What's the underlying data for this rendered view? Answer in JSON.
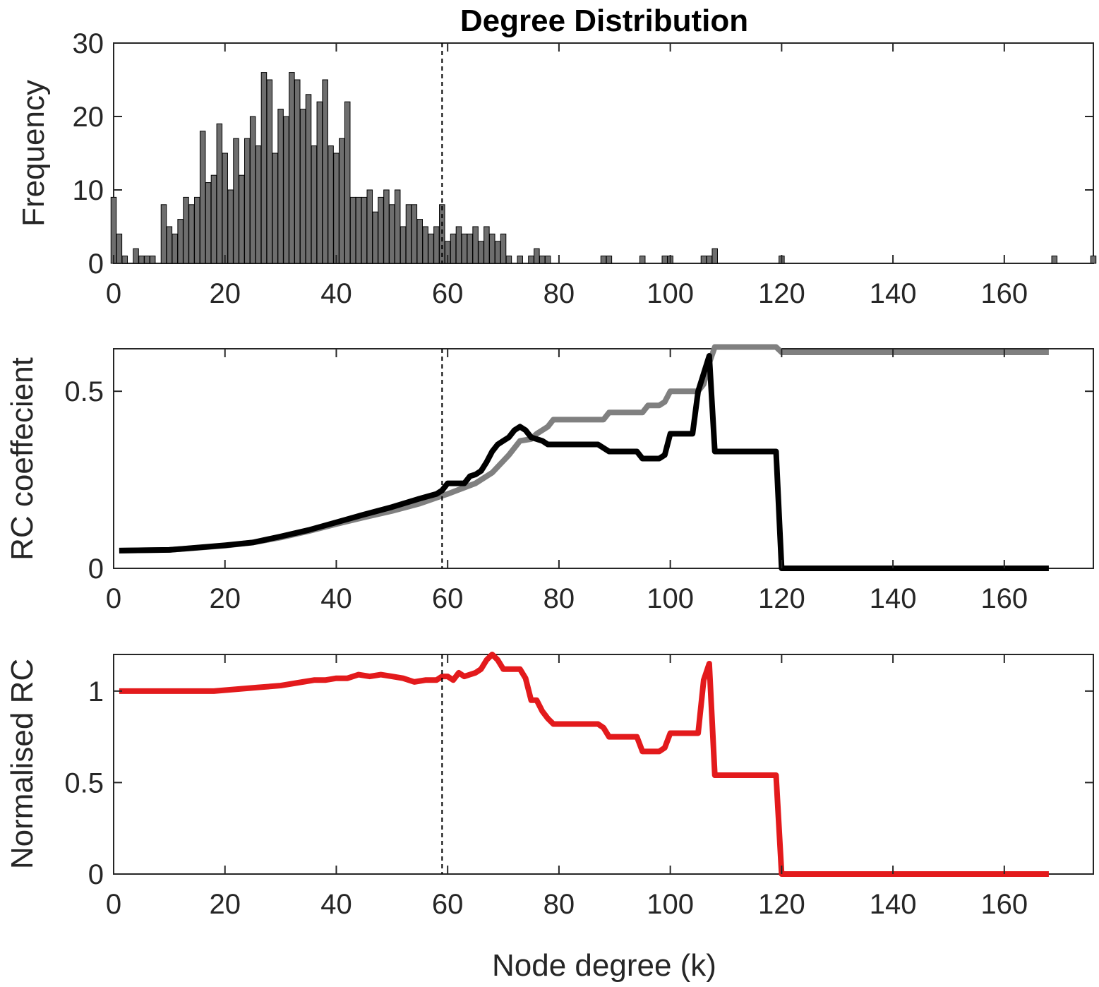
{
  "figure": {
    "title": "Degree Distribution",
    "xlabel": "Node degree (k)"
  },
  "colors": {
    "bar_fill": "#6e6e6e",
    "bar_edge": "#000000",
    "axes": "#262626",
    "random_rc": "#808080",
    "observed_rc": "#000000",
    "normalised_rc": "#e31a1c",
    "threshold_line": "#000000"
  },
  "threshold_k": 59,
  "chart_data": [
    {
      "type": "bar",
      "title": "Degree Distribution",
      "xlabel": "",
      "ylabel": "Frequency",
      "xlim": [
        0,
        176
      ],
      "ylim": [
        0,
        30
      ],
      "xticks": [
        0,
        20,
        40,
        60,
        80,
        100,
        120,
        140,
        160
      ],
      "yticks": [
        0,
        10,
        20,
        30
      ],
      "x": [
        0,
        1,
        2,
        3,
        4,
        5,
        6,
        7,
        8,
        9,
        10,
        11,
        12,
        13,
        14,
        15,
        16,
        17,
        18,
        19,
        20,
        21,
        22,
        23,
        24,
        25,
        26,
        27,
        28,
        29,
        30,
        31,
        32,
        33,
        34,
        35,
        36,
        37,
        38,
        39,
        40,
        41,
        42,
        43,
        44,
        45,
        46,
        47,
        48,
        49,
        50,
        51,
        52,
        53,
        54,
        55,
        56,
        57,
        58,
        59,
        60,
        61,
        62,
        63,
        64,
        65,
        66,
        67,
        68,
        69,
        70,
        71,
        72,
        73,
        74,
        75,
        76,
        77,
        78,
        79,
        80,
        81,
        82,
        83,
        84,
        85,
        86,
        87,
        88,
        89,
        90,
        91,
        92,
        93,
        94,
        95,
        96,
        97,
        98,
        99,
        100,
        101,
        102,
        103,
        104,
        105,
        106,
        107,
        108,
        109,
        110,
        111,
        112,
        113,
        114,
        115,
        116,
        117,
        118,
        119,
        120,
        121,
        122,
        123,
        124,
        125,
        126,
        127,
        128,
        129,
        130,
        131,
        132,
        133,
        134,
        135,
        136,
        137,
        138,
        139,
        140,
        141,
        142,
        143,
        144,
        145,
        146,
        147,
        148,
        149,
        150,
        151,
        152,
        153,
        154,
        155,
        156,
        157,
        158,
        159,
        160,
        161,
        162,
        163,
        164,
        165,
        166,
        167,
        168,
        169,
        170,
        171,
        172,
        173,
        174,
        175,
        176
      ],
      "values": [
        9,
        4,
        1,
        0,
        2,
        1,
        1,
        1,
        0,
        8,
        5,
        4,
        6,
        9,
        8,
        9,
        18,
        11,
        12,
        19,
        15,
        10,
        17,
        12,
        17,
        20,
        16,
        26,
        25,
        15,
        21,
        20,
        26,
        25,
        21,
        23,
        16,
        22,
        25,
        16,
        15,
        17,
        22,
        9,
        9,
        9,
        10,
        7,
        9,
        10,
        8,
        10,
        5,
        8,
        8,
        6,
        5,
        4,
        5,
        8,
        3,
        4,
        5,
        4,
        4,
        5,
        3,
        5,
        4,
        3,
        4,
        1,
        0,
        1,
        0,
        1,
        2,
        1,
        1,
        0,
        0,
        0,
        0,
        0,
        0,
        0,
        0,
        0,
        1,
        1,
        0,
        0,
        0,
        0,
        0,
        1,
        0,
        0,
        0,
        1,
        1,
        0,
        0,
        0,
        0,
        0,
        1,
        1,
        2,
        0,
        0,
        0,
        0,
        0,
        0,
        0,
        0,
        0,
        0,
        0,
        1,
        0,
        0,
        0,
        0,
        0,
        0,
        0,
        0,
        0,
        0,
        0,
        0,
        0,
        0,
        0,
        0,
        0,
        0,
        0,
        0,
        0,
        0,
        0,
        0,
        0,
        0,
        0,
        0,
        0,
        0,
        0,
        0,
        0,
        0,
        0,
        0,
        0,
        0,
        0,
        0,
        0,
        0,
        0,
        0,
        0,
        0,
        0,
        0,
        1,
        0,
        0,
        0,
        0,
        0,
        0,
        1
      ]
    },
    {
      "type": "line",
      "title": "",
      "xlabel": "",
      "ylabel": "RC coeffecient",
      "xlim": [
        0,
        176
      ],
      "ylim": [
        0,
        0.62
      ],
      "xticks": [
        0,
        20,
        40,
        60,
        80,
        100,
        120,
        140,
        160
      ],
      "yticks": [
        0,
        0.5
      ],
      "ytick_labels": [
        "0",
        "0.5"
      ],
      "series": [
        {
          "color": "#808080",
          "x": [
            1,
            10,
            20,
            25,
            30,
            35,
            40,
            45,
            50,
            55,
            59,
            60,
            62,
            65,
            68,
            71,
            73,
            75,
            76,
            78,
            79,
            80,
            88,
            89,
            95,
            96,
            98,
            99,
            100,
            105,
            106,
            107,
            108,
            118,
            119,
            120,
            168
          ],
          "y": [
            0.05,
            0.052,
            0.064,
            0.073,
            0.087,
            0.105,
            0.125,
            0.144,
            0.162,
            0.183,
            0.205,
            0.21,
            0.222,
            0.24,
            0.27,
            0.32,
            0.36,
            0.365,
            0.38,
            0.4,
            0.42,
            0.42,
            0.42,
            0.44,
            0.44,
            0.46,
            0.46,
            0.47,
            0.5,
            0.5,
            0.52,
            0.58,
            0.625,
            0.625,
            0.625,
            0.61,
            0.61
          ]
        },
        {
          "color": "#000000",
          "x": [
            1,
            10,
            20,
            25,
            30,
            35,
            40,
            45,
            50,
            55,
            58,
            59,
            60,
            62,
            63,
            64,
            65,
            66,
            67,
            68,
            69,
            70,
            71,
            72,
            73,
            74,
            75,
            76,
            77,
            78,
            79,
            80,
            86,
            87,
            88,
            89,
            94,
            95,
            96,
            97,
            98,
            99,
            100,
            101,
            104,
            105,
            106,
            107,
            108,
            119,
            120,
            121,
            168
          ],
          "y": [
            0.05,
            0.052,
            0.065,
            0.073,
            0.09,
            0.108,
            0.13,
            0.152,
            0.173,
            0.197,
            0.21,
            0.22,
            0.24,
            0.24,
            0.24,
            0.26,
            0.265,
            0.275,
            0.3,
            0.33,
            0.35,
            0.36,
            0.37,
            0.39,
            0.4,
            0.39,
            0.37,
            0.365,
            0.36,
            0.35,
            0.35,
            0.35,
            0.35,
            0.35,
            0.34,
            0.33,
            0.33,
            0.31,
            0.31,
            0.31,
            0.31,
            0.32,
            0.38,
            0.38,
            0.38,
            0.5,
            0.55,
            0.6,
            0.33,
            0.33,
            0.0,
            0.0,
            0.0
          ]
        }
      ]
    },
    {
      "type": "line",
      "title": "",
      "xlabel": "Node degree (k)",
      "ylabel": "Normalised RC",
      "xlim": [
        0,
        176
      ],
      "ylim": [
        0,
        1.2
      ],
      "xticks": [
        0,
        20,
        40,
        60,
        80,
        100,
        120,
        140,
        160
      ],
      "yticks": [
        0,
        0.5,
        1
      ],
      "ytick_labels": [
        "0",
        "0.5",
        "1"
      ],
      "series": [
        {
          "color": "#e31a1c",
          "x": [
            1,
            10,
            18,
            22,
            26,
            30,
            34,
            36,
            38,
            40,
            42,
            44,
            46,
            48,
            50,
            52,
            54,
            56,
            58,
            59,
            60,
            61,
            62,
            63,
            64,
            65,
            66,
            67,
            68,
            69,
            70,
            71,
            72,
            73,
            74,
            75,
            76,
            77,
            78,
            79,
            80,
            87,
            88,
            89,
            94,
            95,
            96,
            98,
            99,
            100,
            105,
            106,
            107,
            108,
            119,
            120,
            121,
            168
          ],
          "y": [
            1.0,
            1.0,
            1.0,
            1.01,
            1.02,
            1.03,
            1.05,
            1.06,
            1.06,
            1.07,
            1.07,
            1.09,
            1.08,
            1.09,
            1.08,
            1.07,
            1.05,
            1.06,
            1.06,
            1.08,
            1.08,
            1.06,
            1.1,
            1.08,
            1.09,
            1.1,
            1.12,
            1.17,
            1.2,
            1.17,
            1.12,
            1.12,
            1.12,
            1.12,
            1.07,
            0.95,
            0.95,
            0.89,
            0.85,
            0.82,
            0.82,
            0.82,
            0.8,
            0.75,
            0.75,
            0.67,
            0.67,
            0.67,
            0.69,
            0.77,
            0.77,
            1.06,
            1.15,
            0.54,
            0.54,
            0.0,
            0.0,
            0.0
          ]
        }
      ]
    }
  ]
}
